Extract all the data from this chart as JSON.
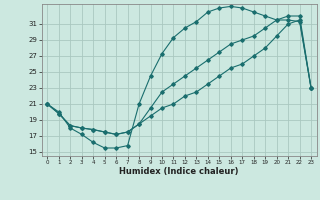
{
  "bg_color": "#cce8e0",
  "grid_color": "#aac8c0",
  "line_color": "#1a6e6e",
  "xlabel": "Humidex (Indice chaleur)",
  "xlim": [
    -0.5,
    23.5
  ],
  "ylim": [
    14.5,
    33.5
  ],
  "yticks": [
    15,
    17,
    19,
    21,
    23,
    25,
    27,
    29,
    31
  ],
  "xticks": [
    0,
    1,
    2,
    3,
    4,
    5,
    6,
    7,
    8,
    9,
    10,
    11,
    12,
    13,
    14,
    15,
    16,
    17,
    18,
    19,
    20,
    21,
    22,
    23
  ],
  "curve1_x": [
    0,
    1,
    2,
    3,
    4,
    5,
    6,
    7,
    8,
    9,
    10,
    11,
    12,
    13,
    14,
    15,
    16,
    17,
    18,
    19,
    20,
    21,
    22,
    23
  ],
  "curve1_y": [
    21,
    20,
    18,
    17.2,
    16.2,
    15.5,
    15.5,
    15.8,
    21,
    24.5,
    27.3,
    29.3,
    30.5,
    31.3,
    32.5,
    33,
    33.2,
    33,
    32.5,
    32,
    31.5,
    31.5,
    31.3,
    23
  ],
  "curve2_x": [
    0,
    1,
    2,
    3,
    4,
    5,
    6,
    7,
    8,
    9,
    10,
    11,
    12,
    13,
    14,
    15,
    16,
    17,
    18,
    19,
    20,
    21,
    22,
    23
  ],
  "curve2_y": [
    21,
    19.8,
    18.3,
    18.0,
    17.8,
    17.5,
    17.2,
    17.5,
    18.5,
    20.5,
    22.5,
    23.5,
    24.5,
    25.5,
    26.5,
    27.5,
    28.5,
    29.0,
    29.5,
    30.5,
    31.5,
    32.0,
    32.0,
    23
  ],
  "curve3_x": [
    0,
    1,
    2,
    3,
    4,
    5,
    6,
    7,
    8,
    9,
    10,
    11,
    12,
    13,
    14,
    15,
    16,
    17,
    18,
    19,
    20,
    21,
    22,
    23
  ],
  "curve3_y": [
    21,
    19.8,
    18.3,
    18.0,
    17.8,
    17.5,
    17.2,
    17.5,
    18.5,
    19.5,
    20.5,
    21.0,
    22.0,
    22.5,
    23.5,
    24.5,
    25.5,
    26.0,
    27.0,
    28.0,
    29.5,
    31.0,
    31.5,
    23
  ]
}
